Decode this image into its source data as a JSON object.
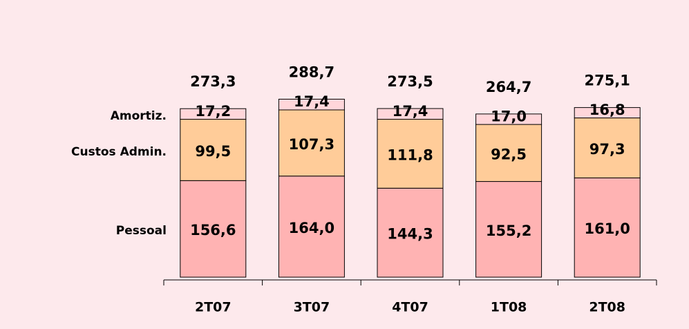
{
  "chart_data": {
    "type": "stacked-bar",
    "categories": [
      "2T07",
      "3T07",
      "4T07",
      "1T08",
      "2T08"
    ],
    "series": [
      {
        "name": "Pessoal",
        "color": "#ffb3b3",
        "values": [
          156.6,
          164.0,
          144.3,
          155.2,
          161.0
        ],
        "value_labels": [
          "156,6",
          "164,0",
          "144,3",
          "155,2",
          "161,0"
        ]
      },
      {
        "name": "Custos Admin.",
        "color": "#ffcc99",
        "values": [
          99.5,
          107.3,
          111.8,
          92.5,
          97.3
        ],
        "value_labels": [
          "99,5",
          "107,3",
          "111,8",
          "92,5",
          "97,3"
        ]
      },
      {
        "name": "Amortiz.",
        "color": "#ffd6da",
        "values": [
          17.2,
          17.4,
          17.4,
          17.0,
          16.8
        ],
        "value_labels": [
          "17,2",
          "17,4",
          "17,4",
          "17,0",
          "16,8"
        ]
      }
    ],
    "totals": [
      273.3,
      288.7,
      273.5,
      264.7,
      275.1
    ],
    "total_labels": [
      "273,3",
      "288,7",
      "273,5",
      "264,7",
      "275,1"
    ]
  }
}
